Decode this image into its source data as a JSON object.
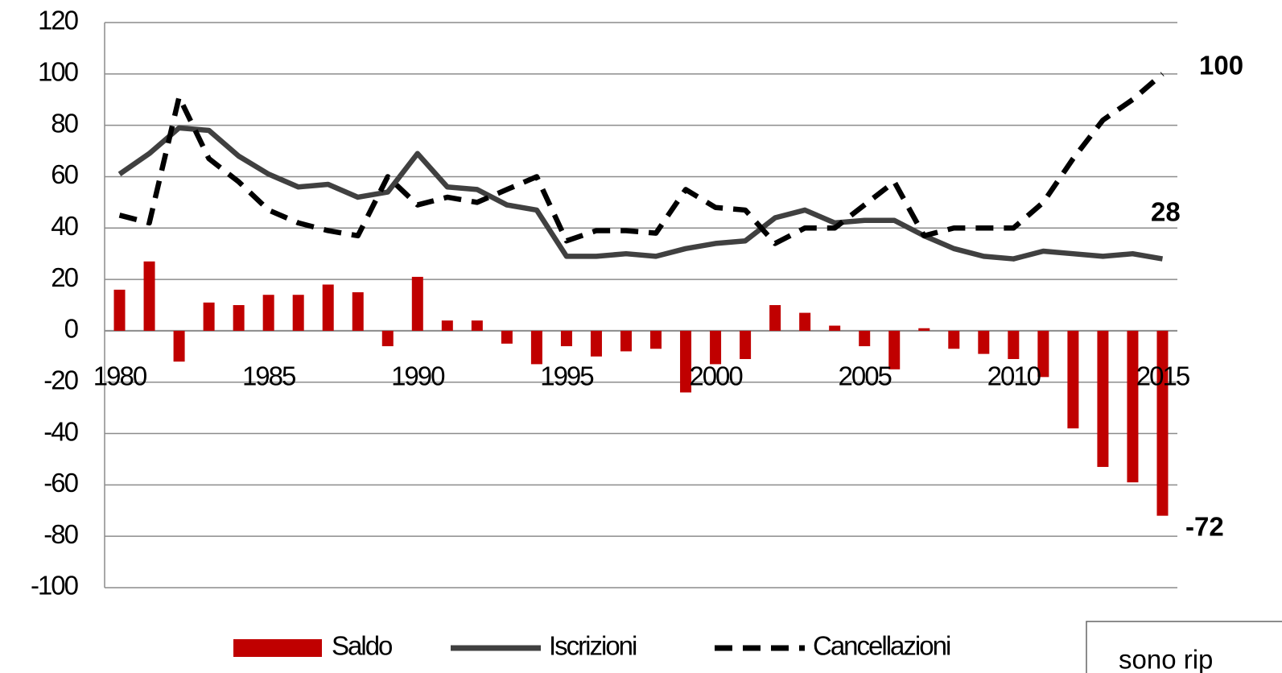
{
  "chart_data": {
    "type": "bar-line",
    "categories": [
      "1980",
      null,
      null,
      null,
      null,
      "1985",
      null,
      null,
      null,
      null,
      "1990",
      null,
      null,
      null,
      null,
      "1995",
      null,
      null,
      null,
      null,
      "2000",
      null,
      null,
      null,
      null,
      "2005",
      null,
      null,
      null,
      null,
      "2010",
      null,
      null,
      null,
      null,
      "2015"
    ],
    "series": [
      {
        "name": "Saldo",
        "type": "bar",
        "color": "#c00000",
        "values": [
          16,
          27,
          -12,
          11,
          10,
          14,
          14,
          18,
          15,
          -6,
          21,
          4,
          4,
          -5,
          -13,
          -6,
          -10,
          -8,
          -7,
          -24,
          -13,
          -11,
          10,
          7,
          2,
          -6,
          -15,
          1,
          -7,
          -9,
          -11,
          -18,
          -38,
          -53,
          -59,
          -72
        ]
      },
      {
        "name": "Iscrizioni",
        "type": "line",
        "color": "#404040",
        "dashed": false,
        "values": [
          61,
          69,
          79,
          78,
          68,
          61,
          56,
          57,
          52,
          54,
          69,
          56,
          55,
          49,
          47,
          29,
          29,
          30,
          29,
          32,
          34,
          35,
          44,
          47,
          42,
          43,
          43,
          37,
          32,
          29,
          28,
          31,
          30,
          29,
          30,
          28
        ]
      },
      {
        "name": "Cancellazioni",
        "type": "line",
        "color": "#000000",
        "dashed": true,
        "values": [
          45,
          42,
          91,
          67,
          58,
          47,
          42,
          39,
          37,
          60,
          49,
          52,
          50,
          55,
          60,
          35,
          39,
          39,
          38,
          55,
          48,
          47,
          34,
          40,
          40,
          49,
          58,
          37,
          40,
          40,
          40,
          50,
          67,
          82,
          90,
          100
        ]
      }
    ],
    "annotations": [
      {
        "text": "100",
        "color": "#000000"
      },
      {
        "text": "28",
        "color": "#000000"
      },
      {
        "text": "-72",
        "color": "#c00000"
      }
    ],
    "note": "sono rip",
    "ylim": [
      -100,
      120
    ],
    "yticks": [
      -100,
      -80,
      -60,
      -40,
      -20,
      0,
      20,
      40,
      60,
      80,
      100,
      120
    ],
    "grid": true,
    "legend": "bottom"
  }
}
